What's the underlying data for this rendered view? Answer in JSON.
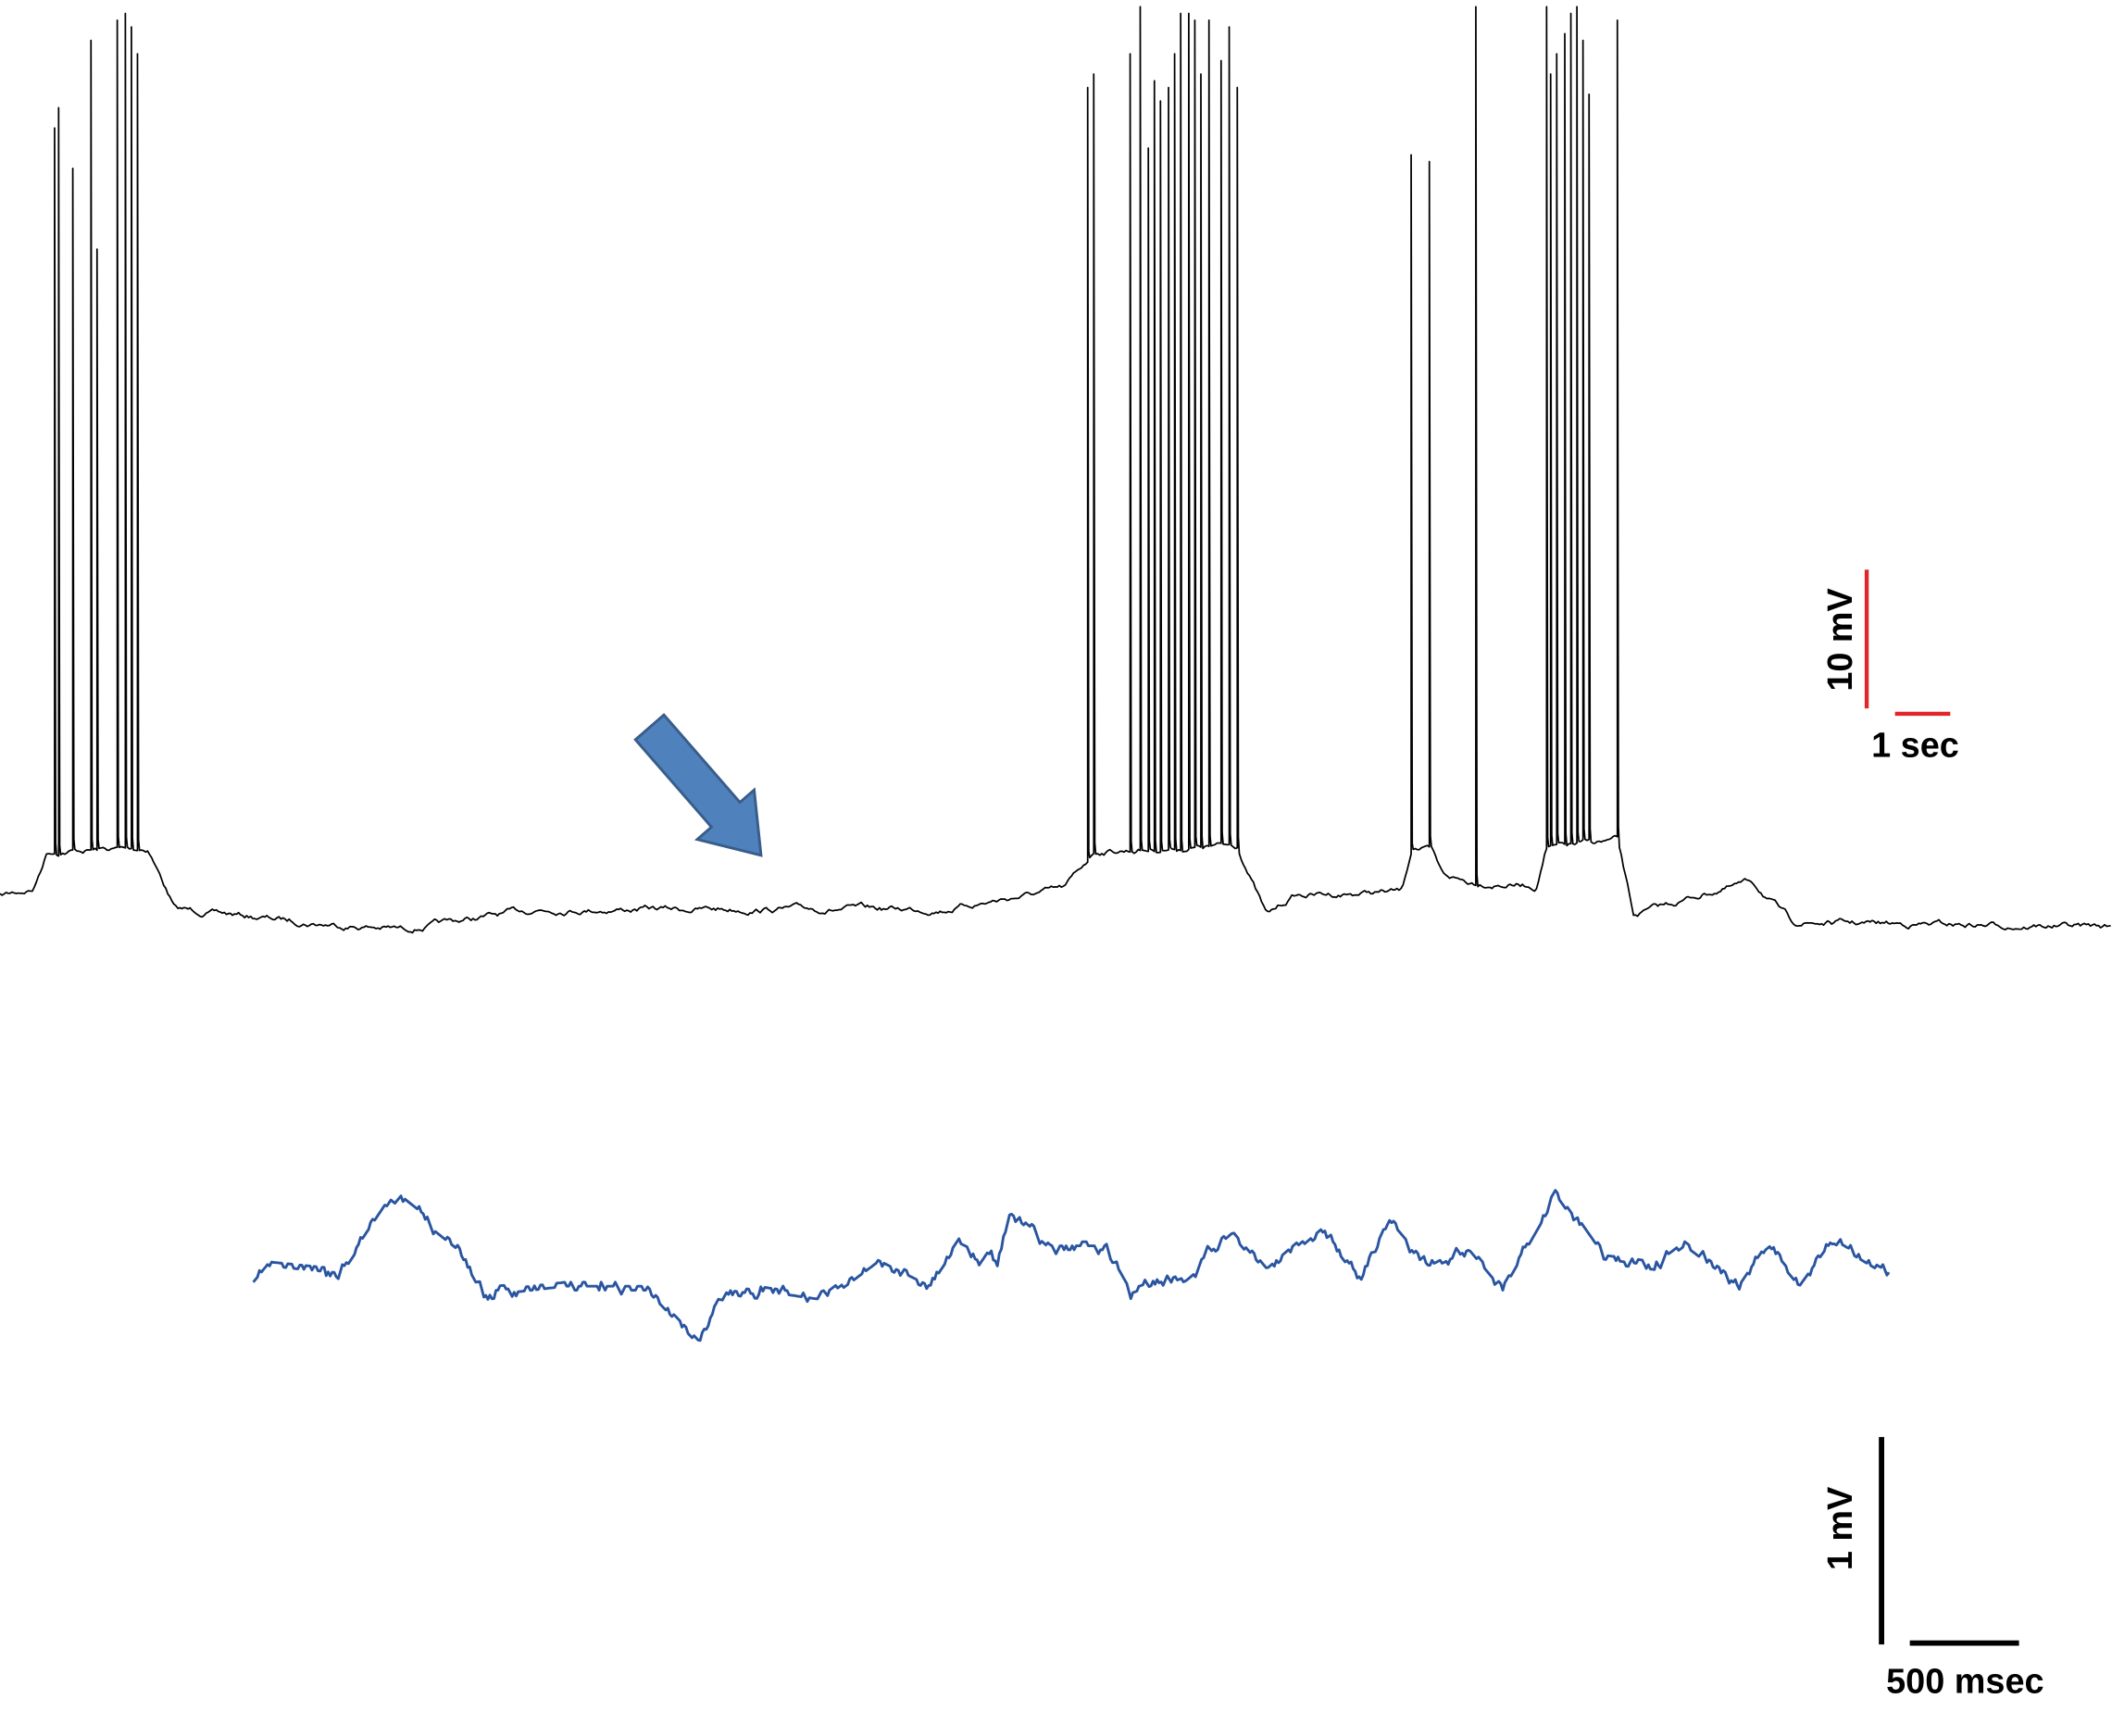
{
  "scale_bars": {
    "top_voltage": "10 mV",
    "top_time": "1 sec",
    "bottom_voltage": "1 mV",
    "bottom_time": "500 msec"
  }
}
